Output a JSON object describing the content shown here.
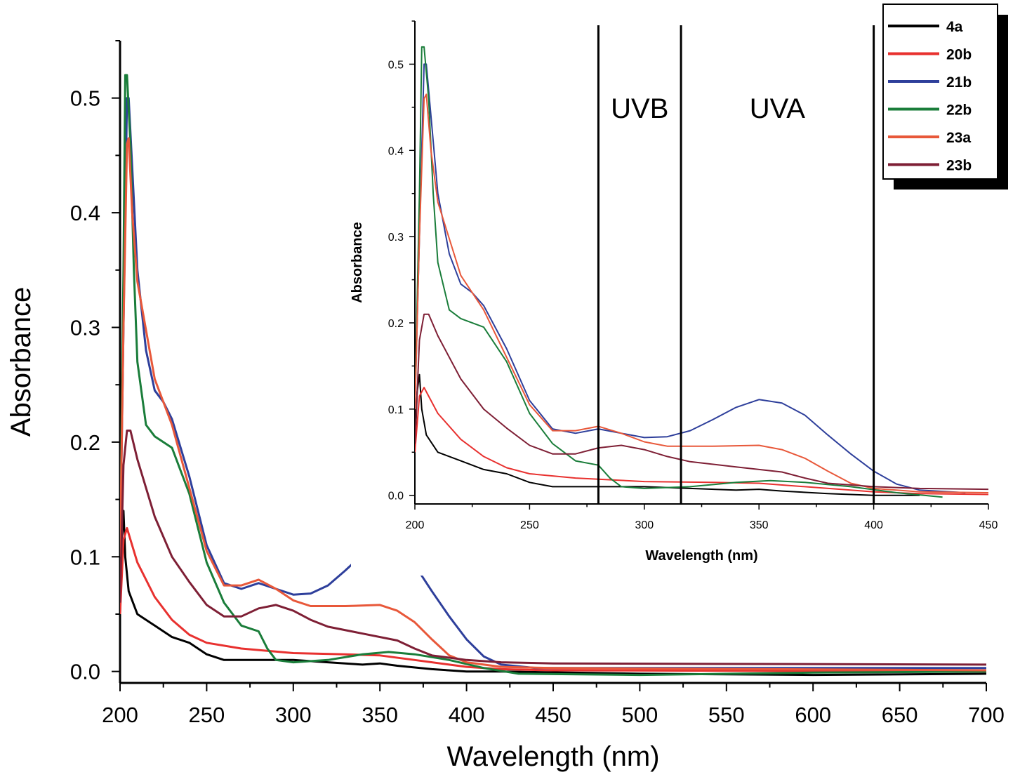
{
  "chart_data": [
    {
      "type": "line",
      "xlabel": "Wavelength (nm)",
      "ylabel": "Absorbance",
      "xlim": [
        200,
        700
      ],
      "ylim": [
        -0.01,
        0.55
      ],
      "xticks": [
        200,
        250,
        300,
        350,
        400,
        450,
        500,
        550,
        600,
        650,
        700
      ],
      "yticks": [
        0.0,
        0.1,
        0.2,
        0.3,
        0.4,
        0.5
      ],
      "xtick_labels": [
        "200",
        "250",
        "300",
        "350",
        "400",
        "450",
        "500",
        "550",
        "600",
        "650",
        "700"
      ],
      "ytick_labels": [
        "0.0",
        "0.1",
        "0.2",
        "0.3",
        "0.4",
        "0.5"
      ],
      "grid": false,
      "series": [
        {
          "name": "4a",
          "color": "#000000",
          "points": [
            [
              200,
              0.05
            ],
            [
              201,
              0.12
            ],
            [
              202,
              0.14
            ],
            [
              203,
              0.1
            ],
            [
              205,
              0.07
            ],
            [
              210,
              0.05
            ],
            [
              220,
              0.04
            ],
            [
              230,
              0.03
            ],
            [
              240,
              0.025
            ],
            [
              250,
              0.015
            ],
            [
              260,
              0.01
            ],
            [
              280,
              0.01
            ],
            [
              300,
              0.01
            ],
            [
              320,
              0.008
            ],
            [
              340,
              0.006
            ],
            [
              350,
              0.007
            ],
            [
              360,
              0.005
            ],
            [
              380,
              0.002
            ],
            [
              400,
              0.0
            ],
            [
              420,
              0.0
            ],
            [
              500,
              -0.002
            ],
            [
              600,
              -0.003
            ],
            [
              700,
              -0.002
            ]
          ]
        },
        {
          "name": "20b",
          "color": "#e8312f",
          "points": [
            [
              200,
              0.05
            ],
            [
              202,
              0.115
            ],
            [
              204,
              0.125
            ],
            [
              206,
              0.115
            ],
            [
              210,
              0.095
            ],
            [
              220,
              0.065
            ],
            [
              230,
              0.045
            ],
            [
              240,
              0.032
            ],
            [
              250,
              0.025
            ],
            [
              270,
              0.02
            ],
            [
              300,
              0.016
            ],
            [
              330,
              0.015
            ],
            [
              350,
              0.014
            ],
            [
              370,
              0.01
            ],
            [
              390,
              0.006
            ],
            [
              400,
              0.004
            ],
            [
              420,
              0.002
            ],
            [
              450,
              0.001
            ],
            [
              700,
              0.0
            ]
          ]
        },
        {
          "name": "21b",
          "color": "#2e3f9b",
          "points": [
            [
              200,
              0.1
            ],
            [
              202,
              0.3
            ],
            [
              204,
              0.5
            ],
            [
              205,
              0.5
            ],
            [
              207,
              0.44
            ],
            [
              210,
              0.35
            ],
            [
              215,
              0.28
            ],
            [
              220,
              0.245
            ],
            [
              225,
              0.235
            ],
            [
              230,
              0.22
            ],
            [
              240,
              0.17
            ],
            [
              250,
              0.11
            ],
            [
              260,
              0.077
            ],
            [
              270,
              0.072
            ],
            [
              280,
              0.077
            ],
            [
              290,
              0.072
            ],
            [
              300,
              0.067
            ],
            [
              310,
              0.068
            ],
            [
              320,
              0.075
            ],
            [
              330,
              0.088
            ],
            [
              340,
              0.102
            ],
            [
              350,
              0.111
            ],
            [
              360,
              0.107
            ],
            [
              370,
              0.093
            ],
            [
              380,
              0.07
            ],
            [
              390,
              0.048
            ],
            [
              400,
              0.028
            ],
            [
              410,
              0.013
            ],
            [
              420,
              0.006
            ],
            [
              440,
              0.003
            ],
            [
              500,
              0.003
            ],
            [
              700,
              0.003
            ]
          ]
        },
        {
          "name": "22b",
          "color": "#1a7d3a",
          "points": [
            [
              200,
              0.1
            ],
            [
              202,
              0.35
            ],
            [
              203,
              0.52
            ],
            [
              204,
              0.52
            ],
            [
              206,
              0.46
            ],
            [
              208,
              0.35
            ],
            [
              210,
              0.27
            ],
            [
              215,
              0.215
            ],
            [
              220,
              0.205
            ],
            [
              230,
              0.195
            ],
            [
              240,
              0.155
            ],
            [
              250,
              0.095
            ],
            [
              260,
              0.06
            ],
            [
              270,
              0.04
            ],
            [
              280,
              0.035
            ],
            [
              285,
              0.02
            ],
            [
              290,
              0.01
            ],
            [
              300,
              0.008
            ],
            [
              320,
              0.01
            ],
            [
              340,
              0.015
            ],
            [
              355,
              0.017
            ],
            [
              370,
              0.015
            ],
            [
              390,
              0.01
            ],
            [
              410,
              0.003
            ],
            [
              430,
              -0.002
            ],
            [
              500,
              -0.003
            ],
            [
              600,
              -0.001
            ],
            [
              700,
              0.0
            ]
          ]
        },
        {
          "name": "23a",
          "color": "#e8583a",
          "points": [
            [
              200,
              0.1
            ],
            [
              202,
              0.3
            ],
            [
              204,
              0.46
            ],
            [
              205,
              0.465
            ],
            [
              207,
              0.4
            ],
            [
              210,
              0.34
            ],
            [
              220,
              0.255
            ],
            [
              230,
              0.215
            ],
            [
              240,
              0.16
            ],
            [
              250,
              0.105
            ],
            [
              260,
              0.075
            ],
            [
              270,
              0.075
            ],
            [
              280,
              0.08
            ],
            [
              290,
              0.072
            ],
            [
              300,
              0.062
            ],
            [
              310,
              0.057
            ],
            [
              330,
              0.057
            ],
            [
              350,
              0.058
            ],
            [
              360,
              0.053
            ],
            [
              370,
              0.043
            ],
            [
              380,
              0.028
            ],
            [
              390,
              0.014
            ],
            [
              400,
              0.008
            ],
            [
              420,
              0.004
            ],
            [
              450,
              0.003
            ],
            [
              700,
              0.001
            ]
          ]
        },
        {
          "name": "23b",
          "color": "#7e1f35",
          "points": [
            [
              200,
              0.06
            ],
            [
              202,
              0.18
            ],
            [
              204,
              0.21
            ],
            [
              206,
              0.21
            ],
            [
              210,
              0.185
            ],
            [
              220,
              0.135
            ],
            [
              230,
              0.1
            ],
            [
              240,
              0.078
            ],
            [
              250,
              0.058
            ],
            [
              260,
              0.048
            ],
            [
              270,
              0.048
            ],
            [
              280,
              0.055
            ],
            [
              290,
              0.058
            ],
            [
              300,
              0.053
            ],
            [
              310,
              0.045
            ],
            [
              320,
              0.039
            ],
            [
              340,
              0.033
            ],
            [
              360,
              0.027
            ],
            [
              370,
              0.02
            ],
            [
              380,
              0.014
            ],
            [
              400,
              0.01
            ],
            [
              420,
              0.008
            ],
            [
              450,
              0.007
            ],
            [
              700,
              0.006
            ]
          ]
        }
      ]
    },
    {
      "type": "line",
      "xlabel": "Wavelength (nm)",
      "ylabel": "Absorbance",
      "xlim": [
        200,
        450
      ],
      "ylim": [
        -0.01,
        0.55
      ],
      "xticks": [
        200,
        250,
        300,
        350,
        400,
        450
      ],
      "yticks": [
        0.0,
        0.1,
        0.2,
        0.3,
        0.4,
        0.5
      ],
      "xtick_labels": [
        "200",
        "250",
        "300",
        "350",
        "400",
        "450"
      ],
      "ytick_labels": [
        "0.0",
        "0.1",
        "0.2",
        "0.3",
        "0.4",
        "0.5"
      ],
      "grid": false,
      "vlines": [
        280,
        316,
        400
      ],
      "region_labels": [
        {
          "text": "UVB",
          "x": 298
        },
        {
          "text": "UVA",
          "x": 358
        }
      ],
      "series_ref": "same as main chart"
    }
  ],
  "legend": {
    "placement": "top-right",
    "entries": [
      {
        "label": "4a",
        "color": "#000000"
      },
      {
        "label": "20b",
        "color": "#e8312f"
      },
      {
        "label": "21b",
        "color": "#2e3f9b"
      },
      {
        "label": "22b",
        "color": "#1a7d3a"
      },
      {
        "label": "23a",
        "color": "#e8583a"
      },
      {
        "label": "23b",
        "color": "#7e1f35"
      }
    ]
  }
}
